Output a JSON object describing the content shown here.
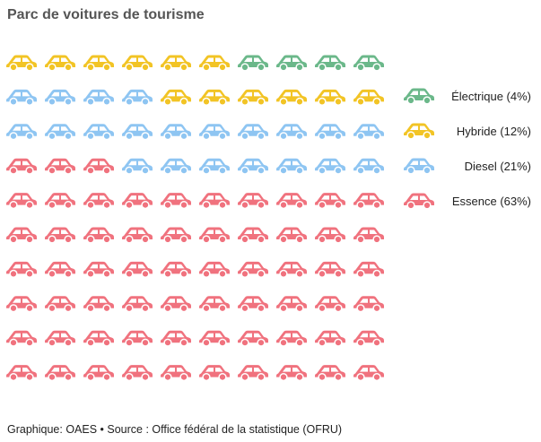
{
  "chart_data": {
    "type": "pictogram",
    "title": "Parc de voitures de tourisme",
    "grid": {
      "rows": 10,
      "columns": 10,
      "fill_order": "bottom-up, left-to-right"
    },
    "series": [
      {
        "name": "Essence (63%)",
        "value": 63,
        "color": "#f0727e"
      },
      {
        "name": "Diesel (21%)",
        "value": 21,
        "color": "#8ec5f2"
      },
      {
        "name": "Hybride (12%)",
        "value": 12,
        "color": "#f2c425"
      },
      {
        "name": "Électrique (4%)",
        "value": 4,
        "color": "#6bb88a"
      }
    ],
    "legend_order": [
      "Électrique (4%)",
      "Hybride (12%)",
      "Diesel (21%)",
      "Essence (63%)"
    ],
    "legend_position": "right"
  },
  "footer": "Graphique: OAES • Source : Office fédéral de la statistique (OFRU)"
}
